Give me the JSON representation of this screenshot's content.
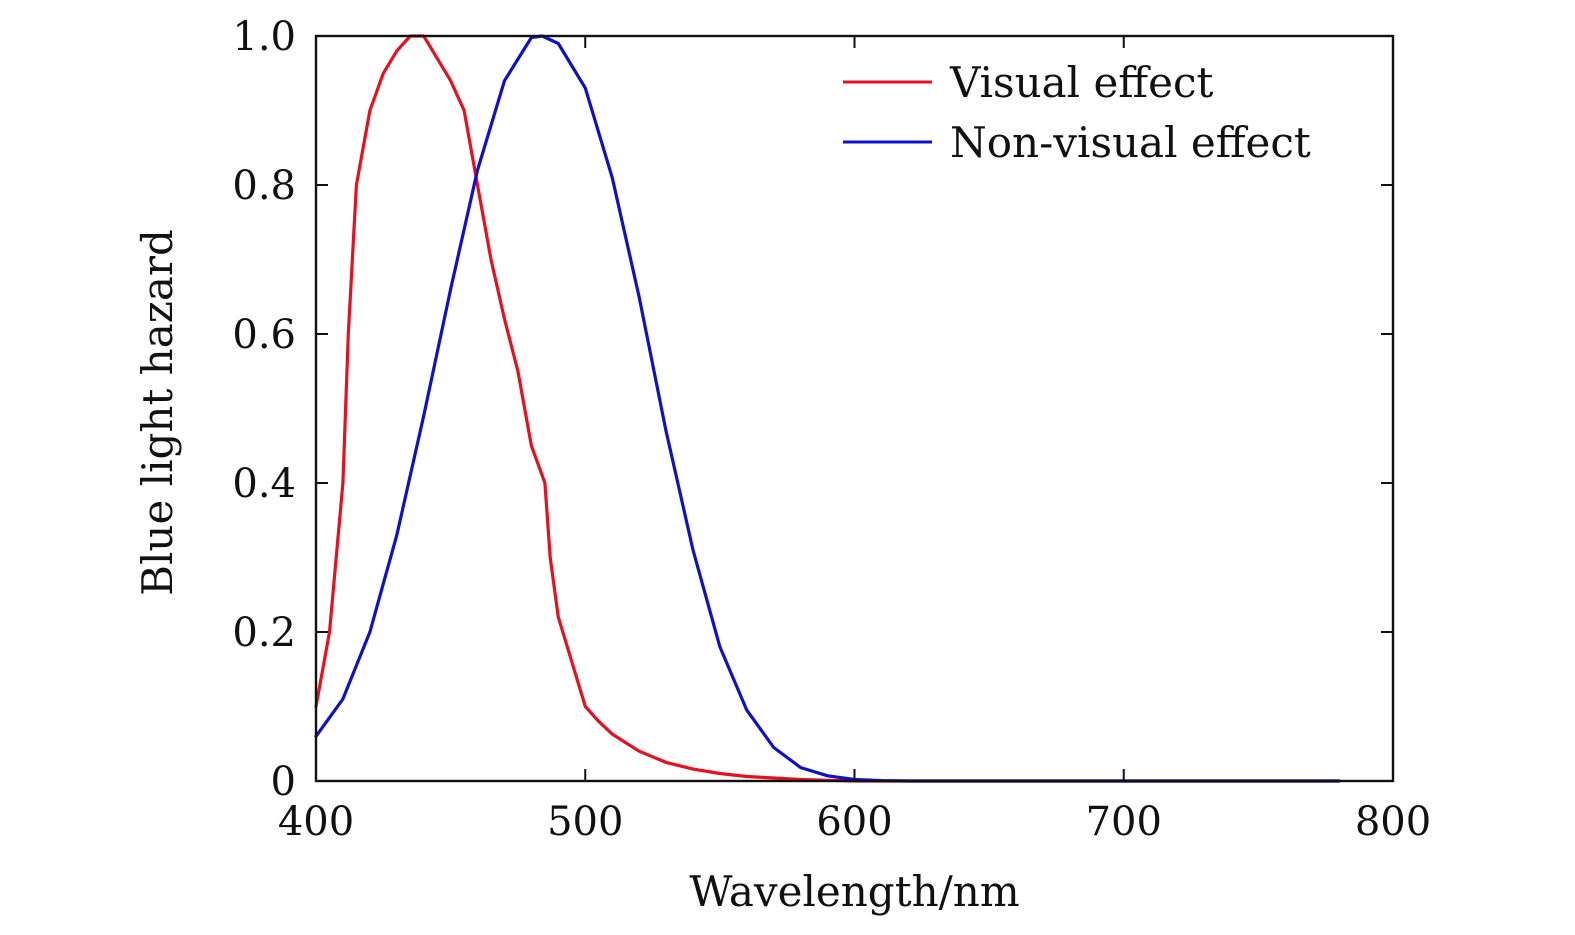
{
  "chart_data": {
    "type": "line",
    "title": "",
    "xlabel": "Wavelength/nm",
    "ylabel": "Blue light hazard",
    "xlim": [
      400,
      800
    ],
    "ylim": [
      0,
      1.0
    ],
    "x_ticks": [
      400,
      500,
      600,
      700,
      800
    ],
    "x_tick_labels": [
      "400",
      "500",
      "600",
      "700",
      "800"
    ],
    "y_ticks": [
      0,
      0.2,
      0.4,
      0.6,
      0.8,
      1.0
    ],
    "y_tick_labels": [
      "0",
      "0.2",
      "0.4",
      "0.6",
      "0.8",
      "1.0"
    ],
    "grid": false,
    "legend_position": "top-right",
    "series": [
      {
        "name": "Visual effect",
        "color": "#e8101e",
        "x": [
          400,
          405,
          410,
          412,
          415,
          420,
          425,
          430,
          435,
          440,
          445,
          450,
          455,
          460,
          465,
          470,
          475,
          480,
          485,
          487,
          490,
          495,
          500,
          505,
          510,
          520,
          530,
          540,
          550,
          560,
          570,
          580,
          590,
          600,
          620,
          650,
          700,
          750,
          780
        ],
        "y": [
          0.1,
          0.2,
          0.4,
          0.6,
          0.8,
          0.9,
          0.95,
          0.98,
          1.0,
          1.0,
          0.97,
          0.94,
          0.9,
          0.8,
          0.7,
          0.62,
          0.55,
          0.45,
          0.4,
          0.3,
          0.22,
          0.16,
          0.1,
          0.08,
          0.063,
          0.04,
          0.025,
          0.016,
          0.01,
          0.006,
          0.004,
          0.002,
          0.001,
          0.0,
          0.0,
          0.0,
          0.0,
          0.0,
          0.0
        ]
      },
      {
        "name": "Non-visual effect",
        "color": "#1010c8",
        "x": [
          400,
          410,
          420,
          430,
          440,
          450,
          460,
          470,
          480,
          484,
          490,
          500,
          510,
          520,
          530,
          540,
          550,
          560,
          570,
          580,
          590,
          600,
          610,
          620,
          650,
          700,
          750,
          780
        ],
        "y": [
          0.06,
          0.11,
          0.2,
          0.33,
          0.49,
          0.66,
          0.82,
          0.94,
          0.998,
          1.0,
          0.99,
          0.93,
          0.81,
          0.65,
          0.47,
          0.31,
          0.18,
          0.095,
          0.045,
          0.018,
          0.007,
          0.002,
          0.0005,
          0.0,
          0.0,
          0.0,
          0.0,
          0.0
        ]
      }
    ]
  }
}
